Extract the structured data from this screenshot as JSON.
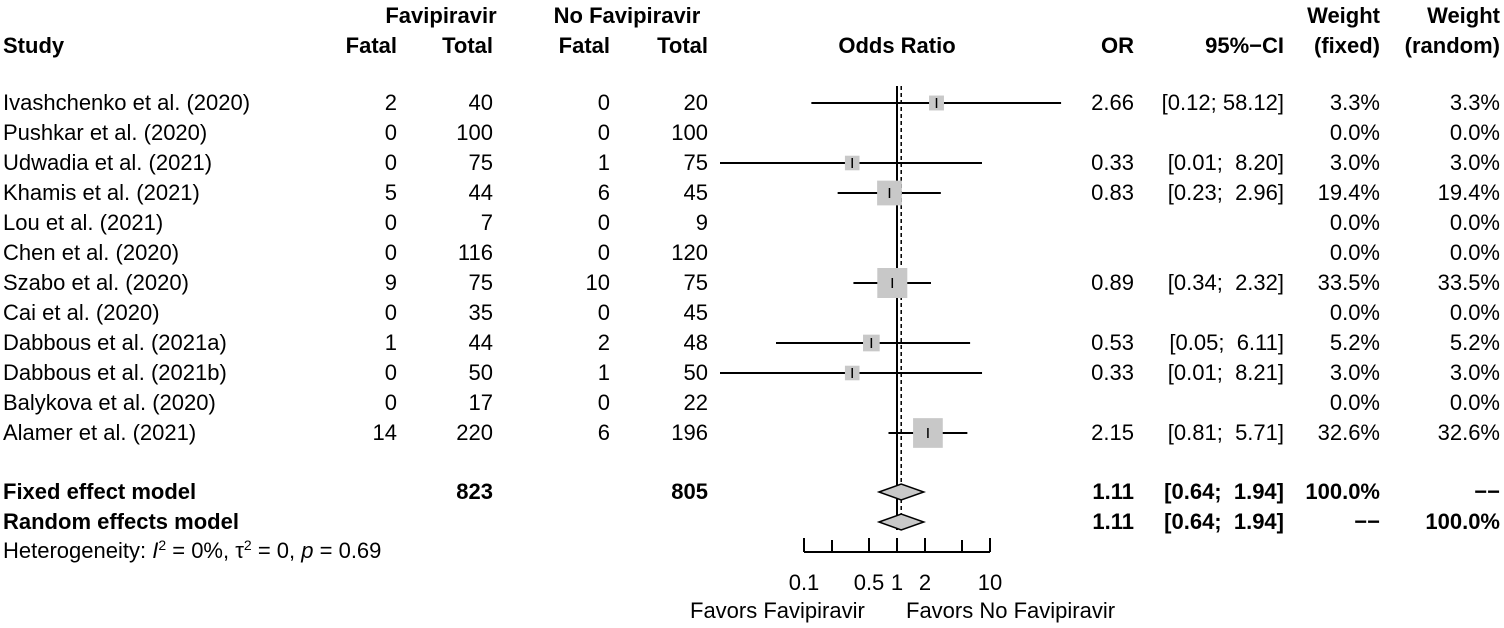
{
  "headers": {
    "group1": "Favipiravir",
    "group2": "No Favipiravir",
    "study": "Study",
    "fatal1": "Fatal",
    "total1": "Total",
    "fatal2": "Fatal",
    "total2": "Total",
    "or_plot": "Odds Ratio",
    "or": "OR",
    "ci": "95%−CI",
    "weight_fixed_1": "Weight",
    "weight_fixed_2": "(fixed)",
    "weight_random_1": "Weight",
    "weight_random_2": "(random)"
  },
  "studies": [
    {
      "study": "Ivashchenko et al. (2020)",
      "fatal1": "2",
      "total1": "40",
      "fatal2": "0",
      "total2": "20",
      "or_text": "2.66",
      "ci_text": "[0.12; 58.12]",
      "wf": "3.3%",
      "wr": "3.3%"
    },
    {
      "study": "Pushkar et al. (2020)",
      "fatal1": "0",
      "total1": "100",
      "fatal2": "0",
      "total2": "100",
      "or_text": "",
      "ci_text": "",
      "wf": "0.0%",
      "wr": "0.0%"
    },
    {
      "study": "Udwadia et al. (2021)",
      "fatal1": "0",
      "total1": "75",
      "fatal2": "1",
      "total2": "75",
      "or_text": "0.33",
      "ci_text": "[0.01;  8.20]",
      "wf": "3.0%",
      "wr": "3.0%"
    },
    {
      "study": "Khamis et al. (2021)",
      "fatal1": "5",
      "total1": "44",
      "fatal2": "6",
      "total2": "45",
      "or_text": "0.83",
      "ci_text": "[0.23;  2.96]",
      "wf": "19.4%",
      "wr": "19.4%"
    },
    {
      "study": "Lou et al. (2021)",
      "fatal1": "0",
      "total1": "7",
      "fatal2": "0",
      "total2": "9",
      "or_text": "",
      "ci_text": "",
      "wf": "0.0%",
      "wr": "0.0%"
    },
    {
      "study": "Chen et al. (2020)",
      "fatal1": "0",
      "total1": "116",
      "fatal2": "0",
      "total2": "120",
      "or_text": "",
      "ci_text": "",
      "wf": "0.0%",
      "wr": "0.0%"
    },
    {
      "study": "Szabo et al. (2020)",
      "fatal1": "9",
      "total1": "75",
      "fatal2": "10",
      "total2": "75",
      "or_text": "0.89",
      "ci_text": "[0.34;  2.32]",
      "wf": "33.5%",
      "wr": "33.5%"
    },
    {
      "study": "Cai et al. (2020)",
      "fatal1": "0",
      "total1": "35",
      "fatal2": "0",
      "total2": "45",
      "or_text": "",
      "ci_text": "",
      "wf": "0.0%",
      "wr": "0.0%"
    },
    {
      "study": "Dabbous et al. (2021a)",
      "fatal1": "1",
      "total1": "44",
      "fatal2": "2",
      "total2": "48",
      "or_text": "0.53",
      "ci_text": "[0.05;  6.11]",
      "wf": "5.2%",
      "wr": "5.2%"
    },
    {
      "study": "Dabbous et al. (2021b)",
      "fatal1": "0",
      "total1": "50",
      "fatal2": "1",
      "total2": "50",
      "or_text": "0.33",
      "ci_text": "[0.01;  8.21]",
      "wf": "3.0%",
      "wr": "3.0%"
    },
    {
      "study": "Balykova et al. (2020)",
      "fatal1": "0",
      "total1": "17",
      "fatal2": "0",
      "total2": "22",
      "or_text": "",
      "ci_text": "",
      "wf": "0.0%",
      "wr": "0.0%"
    },
    {
      "study": "Alamer et al. (2021)",
      "fatal1": "14",
      "total1": "220",
      "fatal2": "6",
      "total2": "196",
      "or_text": "2.15",
      "ci_text": "[0.81;  5.71]",
      "wf": "32.6%",
      "wr": "32.6%"
    }
  ],
  "fixed": {
    "label": "Fixed effect model",
    "total1": "823",
    "total2": "805",
    "or_text": "1.11",
    "ci_text": "[0.64;  1.94]",
    "wf": "100.0%",
    "wr": "−−"
  },
  "random": {
    "label": "Random effects model",
    "or_text": "1.11",
    "ci_text": "[0.64;  1.94]",
    "wf": "−−",
    "wr": "100.0%"
  },
  "heterogeneity": {
    "prefix": "Heterogeneity: ",
    "i2_symbol": "I",
    "i2_value": " = 0%, ",
    "tau_symbol": "τ",
    "tau_value": " = 0, ",
    "p_symbol": "p",
    "p_value": " = 0.69"
  },
  "axis": {
    "ticks": [
      "0.1",
      "0.5",
      "1",
      "2",
      "10"
    ],
    "favors_left": "Favors Favipiravir",
    "favors_right": "Favors No Favipiravir"
  },
  "chart_data": {
    "type": "forest",
    "scale": "log",
    "xlim": [
      0.1,
      10
    ],
    "ticks": [
      0.1,
      0.5,
      1,
      2,
      10
    ],
    "null_value": 1,
    "xlabel_left": "Favors Favipiravir",
    "xlabel_right": "Favors No Favipiravir",
    "studies": [
      {
        "or": 2.66,
        "lower": 0.12,
        "upper": 58.12,
        "weight": 3.3
      },
      {
        "or": null,
        "lower": null,
        "upper": null,
        "weight": 0.0
      },
      {
        "or": 0.33,
        "lower": 0.01,
        "upper": 8.2,
        "weight": 3.0
      },
      {
        "or": 0.83,
        "lower": 0.23,
        "upper": 2.96,
        "weight": 19.4
      },
      {
        "or": null,
        "lower": null,
        "upper": null,
        "weight": 0.0
      },
      {
        "or": null,
        "lower": null,
        "upper": null,
        "weight": 0.0
      },
      {
        "or": 0.89,
        "lower": 0.34,
        "upper": 2.32,
        "weight": 33.5
      },
      {
        "or": null,
        "lower": null,
        "upper": null,
        "weight": 0.0
      },
      {
        "or": 0.53,
        "lower": 0.05,
        "upper": 6.11,
        "weight": 5.2
      },
      {
        "or": 0.33,
        "lower": 0.01,
        "upper": 8.21,
        "weight": 3.0
      },
      {
        "or": null,
        "lower": null,
        "upper": null,
        "weight": 0.0
      },
      {
        "or": 2.15,
        "lower": 0.81,
        "upper": 5.71,
        "weight": 32.6
      }
    ],
    "summary": [
      {
        "model": "fixed",
        "or": 1.11,
        "lower": 0.64,
        "upper": 1.94
      },
      {
        "model": "random",
        "or": 1.11,
        "lower": 0.64,
        "upper": 1.94
      }
    ]
  }
}
